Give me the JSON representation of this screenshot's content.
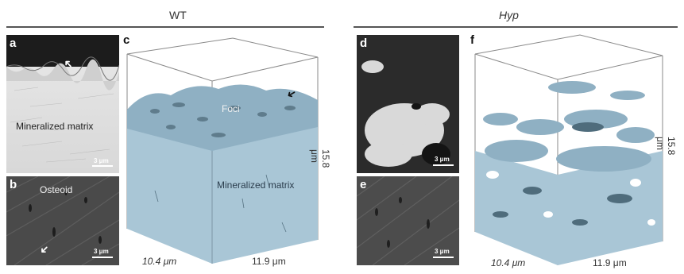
{
  "groups": {
    "wt": "WT",
    "hyp": "Hyp"
  },
  "panels": {
    "a": {
      "letter": "a",
      "label": "Mineralized matrix",
      "scale": "3 μm"
    },
    "b": {
      "letter": "b",
      "label": "Osteoid",
      "scale": "3 μm"
    },
    "c": {
      "letter": "c",
      "foci": "Foci",
      "matrix": "Mineralized matrix",
      "dim_left": "10.4 μm",
      "dim_right": "11.9 μm",
      "dim_height": "15.8 μm"
    },
    "d": {
      "letter": "d",
      "scale": "3 μm"
    },
    "e": {
      "letter": "e",
      "scale": "3 μm"
    },
    "f": {
      "letter": "f",
      "dim_left": "10.4 μm",
      "dim_right": "11.9 μm",
      "dim_height": "15.8 μm"
    }
  },
  "colors": {
    "tissue_blue": "#a9c6d6",
    "foci_blue": "#8fb0c3",
    "em_dark": "#2d2d2d"
  }
}
